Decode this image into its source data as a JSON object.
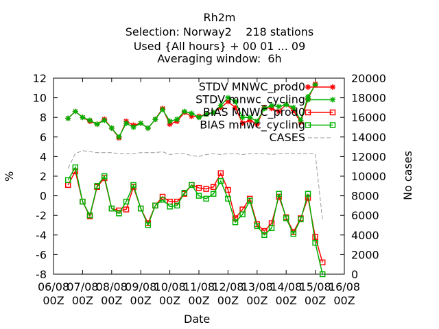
{
  "chart_data": {
    "type": "line",
    "title_lines": [
      "Rh2m",
      "Selection: Norway2    218 stations",
      "Used {All hours} + 00 01 ... 09",
      "Averaging window:  6h"
    ],
    "xlabel": "Date",
    "ylabel": "%",
    "y2label": "No cases",
    "ylim": [
      -8,
      12
    ],
    "y2lim": [
      0,
      20000
    ],
    "yticks": [
      -8,
      -6,
      -4,
      -2,
      0,
      2,
      4,
      6,
      8,
      10,
      12
    ],
    "y2ticks": [
      0,
      2000,
      4000,
      6000,
      8000,
      10000,
      12000,
      14000,
      16000,
      18000,
      20000
    ],
    "xlim": [
      0,
      10
    ],
    "xticks": [
      {
        "pos": 0,
        "line1": "06/08",
        "line2": "00Z"
      },
      {
        "pos": 1,
        "line1": "07/08",
        "line2": "00Z"
      },
      {
        "pos": 2,
        "line1": "08/08",
        "line2": "00Z"
      },
      {
        "pos": 3,
        "line1": "09/08",
        "line2": "00Z"
      },
      {
        "pos": 4,
        "line1": "10/08",
        "line2": "00Z"
      },
      {
        "pos": 5,
        "line1": "11/08",
        "line2": "00Z"
      },
      {
        "pos": 6,
        "line1": "12/08",
        "line2": "00Z"
      },
      {
        "pos": 7,
        "line1": "13/08",
        "line2": "00Z"
      },
      {
        "pos": 8,
        "line1": "14/08",
        "line2": "00Z"
      },
      {
        "pos": 9,
        "line1": "15/08",
        "line2": "00Z"
      },
      {
        "pos": 10,
        "line1": "16/08",
        "line2": "00Z"
      }
    ],
    "grid": false,
    "legend_position": "top-right",
    "x": [
      0.5,
      0.75,
      1.0,
      1.25,
      1.5,
      1.75,
      2.0,
      2.25,
      2.5,
      2.75,
      3.0,
      3.25,
      3.5,
      3.75,
      4.0,
      4.25,
      4.5,
      4.75,
      5.0,
      5.25,
      5.5,
      5.75,
      6.0,
      6.25,
      6.5,
      6.75,
      7.0,
      7.25,
      7.5,
      7.75,
      8.0,
      8.25,
      8.5,
      8.75,
      9.0,
      9.25
    ],
    "series": [
      {
        "name": "STDV MNWC_prod0",
        "axis": "y1",
        "marker": "star",
        "color": "#ff0000",
        "values": [
          7.9,
          8.6,
          8.0,
          7.6,
          7.3,
          7.8,
          6.9,
          5.9,
          7.6,
          7.2,
          7.4,
          6.9,
          7.8,
          8.9,
          7.3,
          7.6,
          8.5,
          8.1,
          8.1,
          8.3,
          8.5,
          9.0,
          9.6,
          9.0,
          7.4,
          7.7,
          7.3,
          9.0,
          8.9,
          8.6,
          9.3,
          8.7,
          7.5,
          9.9,
          11.4,
          null
        ]
      },
      {
        "name": "STDV mnwc_cycling",
        "axis": "y1",
        "marker": "star",
        "color": "#00b000",
        "values": [
          7.9,
          8.6,
          8.0,
          7.7,
          7.3,
          7.7,
          6.9,
          6.0,
          7.4,
          7.0,
          7.4,
          6.9,
          7.8,
          8.8,
          7.6,
          7.8,
          8.6,
          8.4,
          8.0,
          8.3,
          8.5,
          9.2,
          10.0,
          9.6,
          8.0,
          8.0,
          7.6,
          8.9,
          9.2,
          9.1,
          9.3,
          9.0,
          7.7,
          10.1,
          11.3,
          null
        ]
      },
      {
        "name": "BIAS MNWC_prod0",
        "axis": "y1",
        "marker": "square",
        "color": "#ff0000",
        "values": [
          1.1,
          2.5,
          -0.6,
          -2.1,
          0.9,
          1.8,
          -1.3,
          -1.5,
          -1.4,
          0.9,
          -1.3,
          -2.8,
          -1.0,
          -0.1,
          -0.6,
          -0.6,
          0.2,
          1.1,
          0.8,
          0.7,
          0.9,
          2.3,
          0.6,
          -2.3,
          -1.4,
          -0.3,
          -2.9,
          -3.6,
          -2.8,
          -0.1,
          -2.2,
          -3.7,
          -2.3,
          -0.2,
          -4.2,
          -6.8
        ]
      },
      {
        "name": "BIAS mnwc_cycling",
        "axis": "y1",
        "marker": "square",
        "color": "#00b000",
        "values": [
          1.6,
          2.9,
          -0.6,
          -2.0,
          1.0,
          2.0,
          -1.3,
          -1.8,
          -0.6,
          1.1,
          -1.3,
          -3.0,
          -1.0,
          -0.4,
          -1.1,
          -1.0,
          0.3,
          1.1,
          0.0,
          -0.3,
          0.2,
          1.5,
          -0.3,
          -2.7,
          -1.9,
          -0.5,
          -3.1,
          -4.0,
          -3.3,
          0.2,
          -2.3,
          -3.9,
          -2.4,
          0.2,
          -4.8,
          -8.0
        ]
      },
      {
        "name": "CASES",
        "axis": "y2",
        "marker": "none",
        "color": "#999999",
        "dash": true,
        "values": [
          10800,
          12300,
          12600,
          12500,
          12400,
          12400,
          12400,
          12300,
          12300,
          12300,
          12400,
          12400,
          12400,
          12500,
          12200,
          12300,
          12300,
          12100,
          12000,
          12200,
          12300,
          12200,
          12300,
          12300,
          12200,
          12300,
          12300,
          12300,
          12200,
          12300,
          12300,
          12300,
          12300,
          12300,
          12300,
          5500
        ]
      }
    ]
  }
}
